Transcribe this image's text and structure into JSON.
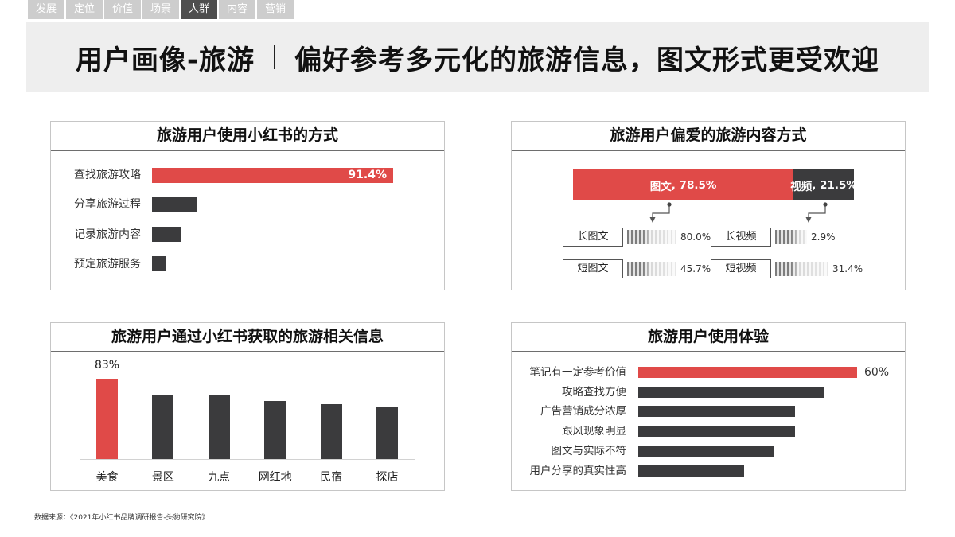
{
  "nav": {
    "tabs": [
      {
        "label": "发展",
        "active": false
      },
      {
        "label": "定位",
        "active": false
      },
      {
        "label": "价值",
        "active": false
      },
      {
        "label": "场景",
        "active": false
      },
      {
        "label": "人群",
        "active": true
      },
      {
        "label": "内容",
        "active": false
      },
      {
        "label": "营销",
        "active": false
      }
    ]
  },
  "header": {
    "title": "用户画像-旅游",
    "subtitle": "偏好参考多元化的旅游信息，图文形式更受欢迎"
  },
  "colors": {
    "highlight": "#e04a48",
    "bar": "#3b3b3d",
    "tab": "#cdcdcd",
    "tab_active": "#4e4e4e",
    "banner": "#eeeeee"
  },
  "chart_data": [
    {
      "type": "bar",
      "orientation": "horizontal",
      "title": "旅游用户使用小红书的方式",
      "categories": [
        "查找旅游攻略",
        "分享旅游过程",
        "记录旅游内容",
        "预定旅游服务"
      ],
      "values": [
        91.4,
        17,
        11,
        5.5
      ],
      "value_labels": [
        "91.4%",
        null,
        null,
        null
      ],
      "highlight_index": 0,
      "grid": false,
      "legend": "none"
    },
    {
      "type": "bar",
      "orientation": "horizontal",
      "stacked": true,
      "title": "旅游用户偏爱的旅游内容方式",
      "highlight_index": 0,
      "series": [
        {
          "name": "图文",
          "value": 78.5,
          "value_label": "78.5%",
          "breakdown": [
            {
              "name": "长图文",
              "value": 80.0,
              "value_label": "80.0%"
            },
            {
              "name": "短图文",
              "value": 45.7,
              "value_label": "45.7%"
            }
          ]
        },
        {
          "name": "视频",
          "value": 21.5,
          "value_label": "21.5%",
          "breakdown": [
            {
              "name": "长视频",
              "value": 2.9,
              "value_label": "2.9%"
            },
            {
              "name": "短视频",
              "value": 31.4,
              "value_label": "31.4%"
            }
          ]
        }
      ],
      "grid": false,
      "legend": "none"
    },
    {
      "type": "bar",
      "orientation": "vertical",
      "title": "旅游用户通过小红书获取的旅游相关信息",
      "categories": [
        "美食",
        "景区",
        "九点",
        "网红地",
        "民宿",
        "探店"
      ],
      "values": [
        83,
        66,
        66,
        60,
        57,
        54
      ],
      "value_labels": [
        "83%",
        null,
        null,
        null,
        null,
        null
      ],
      "highlight_index": 0,
      "grid": false,
      "legend": "none"
    },
    {
      "type": "bar",
      "orientation": "horizontal",
      "title": "旅游用户使用体验",
      "categories": [
        "笔记有一定参考价值",
        "攻略查找方便",
        "广告营销成分浓厚",
        "跟风现象明显",
        "图文与实际不符",
        "用户分享的真实性高"
      ],
      "values": [
        60,
        51,
        43,
        43,
        37,
        29
      ],
      "value_labels": [
        "60%",
        null,
        null,
        null,
        null,
        null
      ],
      "highlight_index": 0,
      "grid": false,
      "legend": "none"
    }
  ],
  "footer": {
    "source": "数据来源：《2021年小红书品牌调研报告-头豹研究院》"
  }
}
